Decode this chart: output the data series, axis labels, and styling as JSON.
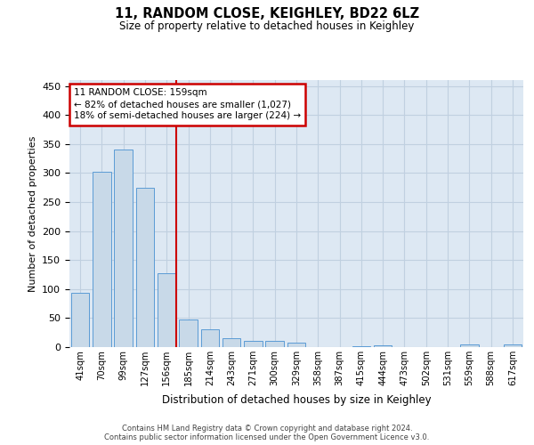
{
  "title": "11, RANDOM CLOSE, KEIGHLEY, BD22 6LZ",
  "subtitle": "Size of property relative to detached houses in Keighley",
  "xlabel": "Distribution of detached houses by size in Keighley",
  "ylabel": "Number of detached properties",
  "categories": [
    "41sqm",
    "70sqm",
    "99sqm",
    "127sqm",
    "156sqm",
    "185sqm",
    "214sqm",
    "243sqm",
    "271sqm",
    "300sqm",
    "329sqm",
    "358sqm",
    "387sqm",
    "415sqm",
    "444sqm",
    "473sqm",
    "502sqm",
    "531sqm",
    "559sqm",
    "588sqm",
    "617sqm"
  ],
  "values": [
    93,
    302,
    341,
    274,
    128,
    47,
    30,
    15,
    10,
    10,
    8,
    0,
    0,
    2,
    3,
    0,
    0,
    0,
    5,
    0,
    4
  ],
  "bar_color": "#c8d9e8",
  "bar_edge_color": "#5b9bd5",
  "grid_color": "#c0d0e0",
  "background_color": "#dde8f3",
  "vline_color": "#cc0000",
  "annotation_text": "11 RANDOM CLOSE: 159sqm\n← 82% of detached houses are smaller (1,027)\n18% of semi-detached houses are larger (224) →",
  "annotation_box_color": "#cc0000",
  "ylim": [
    0,
    460
  ],
  "yticks": [
    0,
    50,
    100,
    150,
    200,
    250,
    300,
    350,
    400,
    450
  ],
  "footer_line1": "Contains HM Land Registry data © Crown copyright and database right 2024.",
  "footer_line2": "Contains public sector information licensed under the Open Government Licence v3.0."
}
